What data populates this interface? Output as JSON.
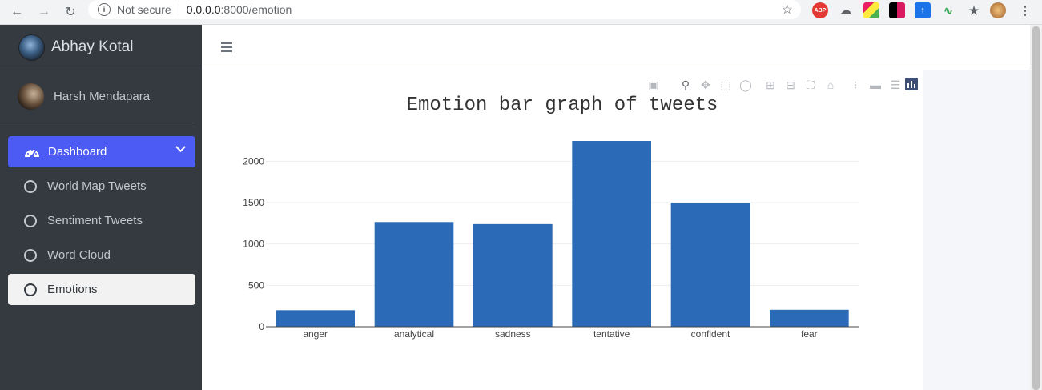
{
  "browser": {
    "security_text": "Not secure",
    "url_host": "0.0.0.0",
    "url_path": ":8000/emotion"
  },
  "sidebar": {
    "brand": "Abhay Kotal",
    "user_name": "Harsh Mendapara",
    "items": [
      {
        "label": "Dashboard",
        "icon": "gauge-icon"
      },
      {
        "label": "World Map Tweets",
        "icon": "circle-icon"
      },
      {
        "label": "Sentiment Tweets",
        "icon": "circle-icon"
      },
      {
        "label": "Word Cloud",
        "icon": "circle-icon"
      },
      {
        "label": "Emotions",
        "icon": "circle-icon"
      }
    ]
  },
  "chart_data": {
    "type": "bar",
    "title": "Emotion bar graph of tweets",
    "xlabel": "",
    "ylabel": "",
    "categories": [
      "anger",
      "analytical",
      "sadness",
      "tentative",
      "confident",
      "fear"
    ],
    "values": [
      200,
      1265,
      1240,
      2245,
      1500,
      205
    ],
    "ylim": [
      0,
      2400
    ],
    "yticks": [
      0,
      500,
      1000,
      1500,
      2000
    ],
    "bar_color": "#2a6ab7",
    "grid": true
  },
  "colors": {
    "sidebar_bg": "#343a40",
    "active_item": "#4c5bf4",
    "bar": "#2a6ab7"
  }
}
